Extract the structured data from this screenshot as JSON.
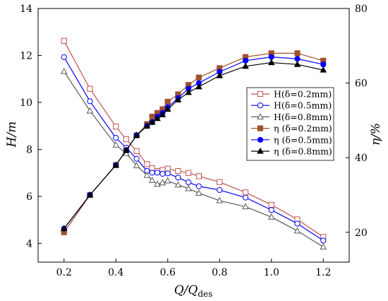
{
  "chart_data": {
    "type": "line",
    "x": [
      0.2,
      0.3,
      0.4,
      0.44,
      0.48,
      0.52,
      0.54,
      0.56,
      0.58,
      0.6,
      0.64,
      0.68,
      0.72,
      0.8,
      0.9,
      1.0,
      1.1,
      1.2
    ],
    "xlim": [
      0.1,
      1.3
    ],
    "xticks": [
      "0.2",
      "0.4",
      "0.6",
      "0.8",
      "1.0",
      "1.2"
    ],
    "xlabel": {
      "main": "Q/Q",
      "sub": "des"
    },
    "left_axis": {
      "label": "H/m",
      "ylim": [
        3.2,
        14
      ],
      "ticks": [
        "4",
        "6",
        "8",
        "10",
        "12",
        "14"
      ]
    },
    "right_axis": {
      "label": "η/%",
      "ylim": [
        12,
        80
      ],
      "ticks": [
        "20",
        "40",
        "60",
        "80"
      ]
    },
    "series": [
      {
        "name": "H(δ=0.2mm)",
        "axis": "left",
        "color": "#c0504d",
        "marker": "square-open",
        "values": [
          12.62,
          10.58,
          8.97,
          8.43,
          7.93,
          7.37,
          7.2,
          7.08,
          7.12,
          7.18,
          7.08,
          7.0,
          6.86,
          6.61,
          6.17,
          5.64,
          5.02,
          4.27
        ]
      },
      {
        "name": "H(δ=0.5mm)",
        "axis": "left",
        "color": "#0000ff",
        "marker": "circle-open",
        "values": [
          11.93,
          10.05,
          8.49,
          8.07,
          7.6,
          7.08,
          7.01,
          7.01,
          6.96,
          6.98,
          6.8,
          6.6,
          6.43,
          6.27,
          5.95,
          5.42,
          4.84,
          4.12
        ]
      },
      {
        "name": "H(δ=0.8mm)",
        "axis": "left",
        "color": "#595959",
        "marker": "triangle-open",
        "values": [
          11.32,
          9.64,
          8.19,
          7.83,
          7.31,
          6.9,
          6.68,
          6.52,
          6.58,
          6.66,
          6.49,
          6.33,
          6.14,
          5.82,
          5.56,
          5.12,
          4.53,
          3.85
        ]
      },
      {
        "name": "η (δ=0.2mm)",
        "axis": "right",
        "color": "#a0522d",
        "marker": "square-filled",
        "values": [
          20.0,
          30.0,
          38.0,
          42.0,
          46.0,
          49.0,
          51.0,
          52.0,
          53.0,
          55.0,
          57.0,
          59.5,
          61.5,
          64.0,
          67.0,
          68.0,
          68.0,
          66.0
        ]
      },
      {
        "name": "η (δ=0.5mm)",
        "axis": "right",
        "color": "#0000ff",
        "marker": "circle-filled",
        "values": [
          21.0,
          30.0,
          38.0,
          42.0,
          46.0,
          48.5,
          49.5,
          51.0,
          52.0,
          53.5,
          56.0,
          58.5,
          60.0,
          63.0,
          66.0,
          67.0,
          66.5,
          65.0
        ]
      },
      {
        "name": "η (δ=0.8mm)",
        "axis": "right",
        "color": "#000000",
        "marker": "triangle-filled",
        "values": [
          21.0,
          30.0,
          38.0,
          42.0,
          46.0,
          48.5,
          49.5,
          50.5,
          51.5,
          53.0,
          55.5,
          57.5,
          59.0,
          62.0,
          64.5,
          65.5,
          65.0,
          63.5
        ]
      }
    ],
    "legend_position": "center-right"
  }
}
